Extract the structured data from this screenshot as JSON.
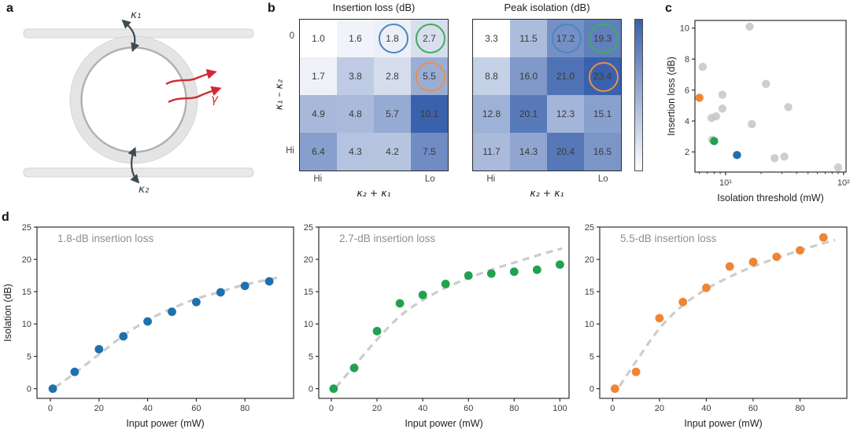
{
  "panel_labels": {
    "a": "a",
    "b": "b",
    "c": "c",
    "d": "d"
  },
  "colors": {
    "blue": "#1d71ad",
    "green": "#22a150",
    "orange": "#ef8534",
    "gray_point": "#c5c5c5",
    "dash": "#cccccc",
    "heat_low": "#ffffff",
    "heat_high": "#3a61ac",
    "circle_blue": "#4a86c2",
    "circle_green": "#44a95f",
    "circle_orange": "#eb8f4b",
    "red": "#cf2b35",
    "arrow_dark": "#3d4b52",
    "axis": "#2e2e2e",
    "tick_text": "#3c3c3c",
    "label_text": "#1f1f1f",
    "annotation_text": "#8f8f8f"
  },
  "panel_a": {
    "coupling_top": "κ₁",
    "coupling_bottom": "κ₂",
    "gain_label": "γ"
  },
  "chart_data": [
    {
      "id": "insertion-loss-heatmap",
      "type": "heatmap",
      "title": "Insertion loss (dB)",
      "xlabel": "κ₂ + κ₁",
      "ylabel": "κ₁ – κ₂",
      "xtick_labels": [
        "Hi",
        "Lo"
      ],
      "ytick_labels": [
        "0",
        "Hi"
      ],
      "rows": [
        [
          1.0,
          1.6,
          1.8,
          2.7
        ],
        [
          1.7,
          3.8,
          2.8,
          5.5
        ],
        [
          4.9,
          4.8,
          5.7,
          10.1
        ],
        [
          6.4,
          4.3,
          4.2,
          7.5
        ]
      ],
      "vmin": 1.0,
      "vmax": 10.1,
      "highlight_circles": [
        {
          "row": 0,
          "col": 2,
          "color": "blue"
        },
        {
          "row": 0,
          "col": 3,
          "color": "green"
        },
        {
          "row": 1,
          "col": 3,
          "color": "orange"
        }
      ]
    },
    {
      "id": "peak-isolation-heatmap",
      "type": "heatmap",
      "title": "Peak isolation (dB)",
      "xlabel": "κ₂ + κ₁",
      "ylabel": "",
      "xtick_labels": [
        "Hi",
        "Lo"
      ],
      "ytick_labels": [],
      "rows": [
        [
          3.3,
          11.5,
          17.2,
          19.3
        ],
        [
          8.8,
          16.0,
          21.0,
          23.4
        ],
        [
          12.8,
          20.1,
          12.3,
          15.1
        ],
        [
          11.7,
          14.3,
          20.4,
          16.5
        ]
      ],
      "vmin": 3.3,
      "vmax": 23.4,
      "highlight_circles": [
        {
          "row": 0,
          "col": 2,
          "color": "blue"
        },
        {
          "row": 0,
          "col": 3,
          "color": "green"
        },
        {
          "row": 1,
          "col": 3,
          "color": "orange"
        }
      ]
    },
    {
      "id": "threshold-scatter",
      "type": "scatter",
      "xlabel": "Isolation threshold (mW)",
      "ylabel": "Insertion loss (dB)",
      "xscale": "log",
      "xlim": [
        5.5,
        105
      ],
      "ylim": [
        0.7,
        10.5
      ],
      "xticks": [
        10,
        100
      ],
      "xtick_labels": [
        "10¹",
        "10²"
      ],
      "minor_xticks": [
        6,
        7,
        8,
        9,
        20,
        30,
        40,
        50,
        60,
        70,
        80,
        90
      ],
      "yticks": [
        2,
        4,
        6,
        8,
        10
      ],
      "points": [
        {
          "x": 6.4,
          "y": 7.5,
          "series": "gray"
        },
        {
          "x": 7.6,
          "y": 4.2,
          "series": "gray"
        },
        {
          "x": 7.7,
          "y": 2.8,
          "series": "gray"
        },
        {
          "x": 8.3,
          "y": 4.3,
          "series": "gray"
        },
        {
          "x": 9.4,
          "y": 4.8,
          "series": "gray"
        },
        {
          "x": 9.4,
          "y": 5.7,
          "series": "gray"
        },
        {
          "x": 16,
          "y": 10.1,
          "series": "gray"
        },
        {
          "x": 16.7,
          "y": 3.8,
          "series": "gray"
        },
        {
          "x": 22,
          "y": 6.4,
          "series": "gray"
        },
        {
          "x": 26,
          "y": 1.6,
          "series": "gray"
        },
        {
          "x": 31.5,
          "y": 1.7,
          "series": "gray"
        },
        {
          "x": 34,
          "y": 4.9,
          "series": "gray"
        },
        {
          "x": 90,
          "y": 1.0,
          "series": "gray"
        },
        {
          "x": 6.0,
          "y": 5.5,
          "series": "orange"
        },
        {
          "x": 8.0,
          "y": 2.7,
          "series": "green"
        },
        {
          "x": 12.5,
          "y": 1.8,
          "series": "blue"
        }
      ]
    },
    {
      "id": "isolation-vs-power-1",
      "type": "scatter",
      "annotation": "1.8-dB insertion loss",
      "series": "blue",
      "xlabel": "Input power (mW)",
      "ylabel": "Isolation (dB)",
      "xlim": [
        -5.5,
        100
      ],
      "ylim": [
        -1.5,
        25
      ],
      "xticks": [
        0,
        20,
        40,
        60,
        80
      ],
      "yticks": [
        0,
        5,
        10,
        15,
        20,
        25
      ],
      "x": [
        1,
        10,
        20,
        30,
        40,
        50,
        60,
        70,
        80,
        90
      ],
      "y": [
        0,
        2.6,
        6.1,
        8.1,
        10.4,
        11.9,
        13.4,
        14.9,
        15.9,
        16.6
      ],
      "fit": [
        [
          2,
          0.2
        ],
        [
          10,
          2.4
        ],
        [
          20,
          5.3
        ],
        [
          30,
          8.2
        ],
        [
          40,
          10.6
        ],
        [
          50,
          12.4
        ],
        [
          60,
          13.9
        ],
        [
          70,
          15.0
        ],
        [
          80,
          16.1
        ],
        [
          90,
          16.9
        ],
        [
          95,
          17.3
        ]
      ]
    },
    {
      "id": "isolation-vs-power-2",
      "type": "scatter",
      "annotation": "2.7-dB insertion loss",
      "series": "green",
      "xlabel": "Input power (mW)",
      "xlim": [
        -5.5,
        104
      ],
      "ylim": [
        -1.5,
        25
      ],
      "xticks": [
        0,
        20,
        40,
        60,
        80,
        100
      ],
      "yticks": [
        0,
        5,
        10,
        15,
        20,
        25
      ],
      "x": [
        1,
        10,
        20,
        30,
        40,
        50,
        60,
        70,
        80,
        90,
        100
      ],
      "y": [
        0,
        3.2,
        8.9,
        13.2,
        14.5,
        16.2,
        17.5,
        17.8,
        18.1,
        18.4,
        19.2
      ],
      "fit": [
        [
          2,
          0.2
        ],
        [
          10,
          3.5
        ],
        [
          20,
          7.6
        ],
        [
          30,
          11.2
        ],
        [
          40,
          13.7
        ],
        [
          50,
          15.6
        ],
        [
          60,
          17.1
        ],
        [
          70,
          18.4
        ],
        [
          80,
          19.5
        ],
        [
          90,
          20.6
        ],
        [
          101,
          21.7
        ]
      ]
    },
    {
      "id": "isolation-vs-power-3",
      "type": "scatter",
      "annotation": "5.5-dB insertion loss",
      "series": "orange",
      "xlabel": "Input power (mW)",
      "xlim": [
        -5.5,
        100
      ],
      "ylim": [
        -1.5,
        25
      ],
      "xticks": [
        0,
        20,
        40,
        60,
        80
      ],
      "yticks": [
        0,
        5,
        10,
        15,
        20,
        25
      ],
      "x": [
        1,
        10,
        20,
        30,
        40,
        50,
        60,
        70,
        80,
        90
      ],
      "y": [
        0,
        2.6,
        10.9,
        13.4,
        15.6,
        18.9,
        19.6,
        20.4,
        21.4,
        23.4
      ],
      "fit": [
        [
          3,
          0.4
        ],
        [
          10,
          4.2
        ],
        [
          20,
          9.3
        ],
        [
          30,
          12.9
        ],
        [
          40,
          15.4
        ],
        [
          50,
          17.3
        ],
        [
          60,
          18.9
        ],
        [
          70,
          20.2
        ],
        [
          80,
          21.4
        ],
        [
          90,
          22.5
        ],
        [
          95,
          23.0
        ]
      ]
    }
  ]
}
